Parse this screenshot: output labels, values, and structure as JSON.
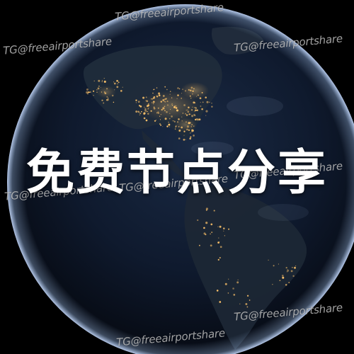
{
  "headline": "免费节点分享",
  "watermarks": [
    "TG@freeairportshare",
    "TG@freeairportshare",
    "TG@freeairportshare",
    "TG@freeairportshare",
    "TG@freeairportshare",
    "TG@freeairportshare",
    "TG@freeairportshare",
    "TG@freeairportshare"
  ],
  "colors": {
    "background": "#000000",
    "ocean": "#0e1a2e",
    "land": "#1f2b3a",
    "city_lights": "#ffc46a",
    "headline": "#ffffff"
  }
}
